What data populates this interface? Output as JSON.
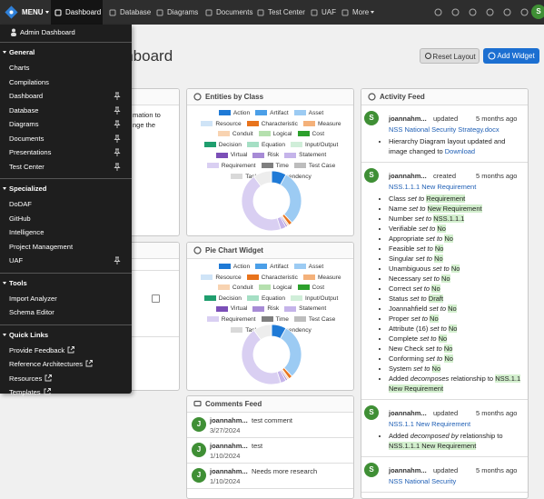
{
  "nav": {
    "menu": "MENU",
    "items": [
      "Dashboard",
      "Database",
      "Diagrams",
      "Documents",
      "Test Center",
      "UAF",
      "More"
    ],
    "active": 0,
    "avatar": "S"
  },
  "menu": {
    "top": "Admin Dashboard",
    "sections": [
      {
        "title": "General",
        "items": [
          {
            "label": "Charts",
            "pinned": false
          },
          {
            "label": "Compilations",
            "pinned": false
          },
          {
            "label": "Dashboard",
            "pinned": true
          },
          {
            "label": "Database",
            "pinned": true
          },
          {
            "label": "Diagrams",
            "pinned": true
          },
          {
            "label": "Documents",
            "pinned": true
          },
          {
            "label": "Presentations",
            "pinned": true
          },
          {
            "label": "Test Center",
            "pinned": true
          }
        ]
      },
      {
        "title": "Specialized",
        "items": [
          {
            "label": "DoDAF",
            "pinned": false
          },
          {
            "label": "GitHub",
            "pinned": false
          },
          {
            "label": "Intelligence",
            "pinned": false
          },
          {
            "label": "Project Management",
            "pinned": false
          },
          {
            "label": "UAF",
            "pinned": true
          }
        ]
      },
      {
        "title": "Tools",
        "items": [
          {
            "label": "Import Analyzer",
            "pinned": false
          },
          {
            "label": "Schema Editor",
            "pinned": false
          }
        ]
      },
      {
        "title": "Quick Links",
        "items": [
          {
            "label": "Provide Feedback",
            "pinned": false,
            "external": true
          },
          {
            "label": "Reference Architectures",
            "pinned": false,
            "external": true
          },
          {
            "label": "Resources",
            "pinned": false,
            "external": true
          },
          {
            "label": "Templates",
            "pinned": false,
            "external": true
          }
        ]
      }
    ]
  },
  "page": {
    "title": "Dashboard",
    "buttons": [
      "Reset Layout",
      "Add Widget"
    ]
  },
  "left_widget": {
    "fragments": [
      "mation to",
      "nge the"
    ]
  },
  "widgets": [
    {
      "title": "Entities by Class",
      "chart": {
        "type": "pie",
        "categories": [
          "Action",
          "Artifact",
          "Asset",
          "Resource",
          "Characteristic",
          "Measure",
          "Conduit",
          "Logical",
          "Cost",
          "Decision",
          "Equation",
          "Input/Output",
          "Virtual",
          "Risk",
          "Statement",
          "Requirement",
          "Time",
          "Test Case",
          "Task",
          "Dependency"
        ],
        "colors": [
          "#1f7ad6",
          "#4b9fe8",
          "#9ccbf3",
          "#cfe4f7",
          "#e8731c",
          "#f4b17a",
          "#f8d3b1",
          "#b5e0ae",
          "#2ca02c",
          "#1f9e6e",
          "#a5dfc4",
          "#d0eed9",
          "#7b4fb7",
          "#a78bd6",
          "#c5b4ea",
          "#d9cff2",
          "#7f7f7f",
          "#bdbdbd",
          "#d9d9d9",
          "#ededed"
        ],
        "values": [
          8,
          0,
          30,
          0,
          2,
          0,
          1,
          0,
          0,
          0,
          0,
          0,
          0,
          1,
          3,
          45,
          0,
          0,
          0,
          10
        ]
      }
    },
    {
      "title": "Pie Chart Widget",
      "chart": {
        "type": "pie",
        "categories": [
          "Action",
          "Artifact",
          "Asset",
          "Resource",
          "Characteristic",
          "Measure",
          "Conduit",
          "Logical",
          "Cost",
          "Decision",
          "Equation",
          "Input/Output",
          "Virtual",
          "Risk",
          "Statement",
          "Requirement",
          "Time",
          "Test Case",
          "Task",
          "Dependency"
        ],
        "colors": [
          "#1f7ad6",
          "#4b9fe8",
          "#9ccbf3",
          "#cfe4f7",
          "#e8731c",
          "#f4b17a",
          "#f8d3b1",
          "#b5e0ae",
          "#2ca02c",
          "#1f9e6e",
          "#a5dfc4",
          "#d0eed9",
          "#7b4fb7",
          "#a78bd6",
          "#c5b4ea",
          "#d9cff2",
          "#7f7f7f",
          "#bdbdbd",
          "#d9d9d9",
          "#ededed"
        ],
        "values": [
          8,
          0,
          30,
          0,
          2,
          0,
          1,
          0,
          0,
          0,
          0,
          0,
          0,
          1,
          3,
          45,
          0,
          0,
          0,
          10
        ]
      }
    }
  ],
  "comments": {
    "title": "Comments Feed",
    "items": [
      {
        "avatar": "J",
        "name": "joannahm...",
        "date": "3/27/2024",
        "text": "test comment"
      },
      {
        "avatar": "J",
        "name": "joannahm...",
        "date": "1/10/2024",
        "text": "test"
      },
      {
        "avatar": "J",
        "name": "joannahm...",
        "date": "1/10/2024",
        "text": "Needs more research"
      }
    ]
  },
  "activity": {
    "title": "Activity Feed",
    "items": [
      {
        "avatar": "S",
        "name": "joannahm...",
        "action": "updated",
        "time": "5 months ago",
        "link": "NSS National Security Strategy.docx",
        "bullets": [
          [
            {
              "t": "Hierarchy Diagram"
            },
            {
              "t": "layout updated and image changed to"
            },
            {
              "t": "Download",
              "s": "lk"
            }
          ]
        ]
      },
      {
        "avatar": "S",
        "name": "joannahm...",
        "action": "created",
        "time": "5 months ago",
        "link": "NSS.1.1.1 New Requirement",
        "bullets": [
          [
            {
              "t": "Class"
            },
            {
              "t": "set to",
              "s": "em"
            },
            {
              "t": "Requirement",
              "s": "hl"
            }
          ],
          [
            {
              "t": "Name"
            },
            {
              "t": "set to",
              "s": "em"
            },
            {
              "t": "New Requirement",
              "s": "hl"
            }
          ],
          [
            {
              "t": "Number"
            },
            {
              "t": "set to",
              "s": "em"
            },
            {
              "t": "NSS.1.1.1",
              "s": "hl"
            }
          ],
          [
            {
              "t": "Verifiable"
            },
            {
              "t": "set to",
              "s": "em"
            },
            {
              "t": "No",
              "s": "hl"
            }
          ],
          [
            {
              "t": "Appropriate"
            },
            {
              "t": "set to",
              "s": "em"
            },
            {
              "t": "No",
              "s": "hl"
            }
          ],
          [
            {
              "t": "Feasible"
            },
            {
              "t": "set to",
              "s": "em"
            },
            {
              "t": "No",
              "s": "hl"
            }
          ],
          [
            {
              "t": "Singular"
            },
            {
              "t": "set to",
              "s": "em"
            },
            {
              "t": "No",
              "s": "hl"
            }
          ],
          [
            {
              "t": "Unambiguous"
            },
            {
              "t": "set to",
              "s": "em"
            },
            {
              "t": "No",
              "s": "hl"
            }
          ],
          [
            {
              "t": "Necessary"
            },
            {
              "t": "set to",
              "s": "em"
            },
            {
              "t": "No",
              "s": "hl"
            }
          ],
          [
            {
              "t": "Correct"
            },
            {
              "t": "set to",
              "s": "em"
            },
            {
              "t": "No",
              "s": "hl"
            }
          ],
          [
            {
              "t": "Status"
            },
            {
              "t": "set to",
              "s": "em"
            },
            {
              "t": "Draft",
              "s": "hl"
            }
          ],
          [
            {
              "t": "Joannahfield"
            },
            {
              "t": "set to",
              "s": "em"
            },
            {
              "t": "No",
              "s": "hl"
            }
          ],
          [
            {
              "t": "Proper"
            },
            {
              "t": "set to",
              "s": "em"
            },
            {
              "t": "No",
              "s": "hl"
            }
          ],
          [
            {
              "t": "Attribute (16)"
            },
            {
              "t": "set to",
              "s": "em"
            },
            {
              "t": "No",
              "s": "hl"
            }
          ],
          [
            {
              "t": "Complete"
            },
            {
              "t": "set to",
              "s": "em"
            },
            {
              "t": "No",
              "s": "hl"
            }
          ],
          [
            {
              "t": "New Check"
            },
            {
              "t": "set to",
              "s": "em"
            },
            {
              "t": "No",
              "s": "hl"
            }
          ],
          [
            {
              "t": "Conforming"
            },
            {
              "t": "set to",
              "s": "em"
            },
            {
              "t": "No",
              "s": "hl"
            }
          ],
          [
            {
              "t": "System"
            },
            {
              "t": "set to",
              "s": "em"
            },
            {
              "t": "No",
              "s": "hl"
            }
          ],
          [
            {
              "t": "Added"
            },
            {
              "t": "decomposes",
              "s": "em"
            },
            {
              "t": "relationship to"
            },
            {
              "t": "NSS.1.1 New Requirement",
              "s": "hl"
            }
          ]
        ]
      },
      {
        "avatar": "S",
        "name": "joannahm...",
        "action": "updated",
        "time": "5 months ago",
        "link": "NSS.1.1 New Requirement",
        "bullets": [
          [
            {
              "t": "Added"
            },
            {
              "t": "decomposed by",
              "s": "em"
            },
            {
              "t": "relationship to"
            },
            {
              "t": "NSS.1.1.1 New Requirement",
              "s": "hl"
            }
          ]
        ]
      },
      {
        "avatar": "S",
        "name": "joannahm...",
        "action": "updated",
        "time": "5 months ago",
        "link": "NSS National Security",
        "bullets": []
      }
    ]
  }
}
